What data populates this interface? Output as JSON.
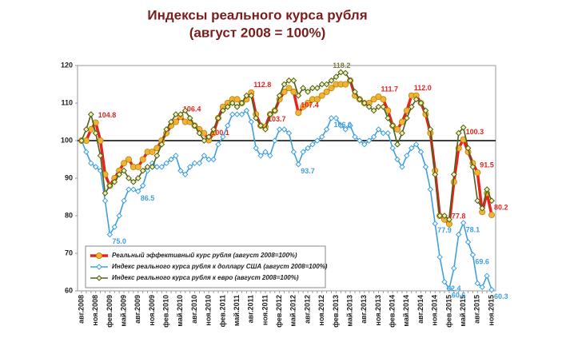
{
  "chart_data": {
    "type": "line",
    "title": "Индексы реального курса рубля",
    "subtitle": "(август 2008 = 100%)",
    "categories": [
      "авг.2008",
      null,
      null,
      "ноя.2008",
      null,
      null,
      "фев.2009",
      null,
      null,
      "май.2009",
      null,
      null,
      "авг.2009",
      null,
      null,
      "ноя.2009",
      null,
      null,
      "фев.2010",
      null,
      null,
      "май.2010",
      null,
      null,
      "авг.2010",
      null,
      null,
      "ноя.2010",
      null,
      null,
      "фев.2011",
      null,
      null,
      "май.2011",
      null,
      null,
      "авг.2011",
      null,
      null,
      "ноя.2011",
      null,
      null,
      "фев.2012",
      null,
      null,
      "май.2012",
      null,
      null,
      "авг.2012",
      null,
      null,
      "ноя.2012",
      null,
      null,
      "фев.2013",
      null,
      null,
      "май.2013",
      null,
      null,
      "авг.2013",
      null,
      null,
      "ноя.2013",
      null,
      null,
      "фев.2014",
      null,
      null,
      "май.2014",
      null,
      null,
      "авг.2014",
      null,
      null,
      "ноя.2014",
      null,
      null,
      "фев.2015",
      null,
      null,
      "май.2015",
      null,
      null,
      "авг.2015",
      null,
      null,
      "ноя.2015"
    ],
    "series": [
      {
        "name": "Реальный эффективный курс рубля (август 2008=100%)",
        "color": "#e8231e",
        "marker_color": "#f2b233",
        "values": [
          100,
          100,
          103,
          104.8,
          100,
          91,
          88,
          90,
          92,
          94,
          95,
          93,
          93,
          95,
          97,
          97,
          98,
          100,
          102,
          104,
          105,
          106.4,
          105,
          105,
          104,
          103,
          102,
          100.1,
          102,
          106,
          109,
          110,
          111,
          111,
          110,
          111,
          112.8,
          107,
          104,
          103.7,
          107,
          108,
          111,
          113,
          114,
          113,
          107.4,
          109,
          110,
          111,
          111,
          112,
          113,
          114,
          115,
          115,
          115,
          116,
          112,
          111,
          110,
          110,
          111,
          111.7,
          111,
          108,
          104,
          103,
          105,
          108,
          112,
          112,
          110,
          107,
          102,
          92,
          80,
          79,
          77.8,
          89,
          98,
          100.3,
          97,
          94,
          91.5,
          81,
          86,
          80.2
        ],
        "value_labels": [
          null,
          null,
          null,
          "104.8",
          null,
          null,
          null,
          null,
          null,
          null,
          null,
          null,
          null,
          null,
          null,
          null,
          null,
          null,
          null,
          null,
          null,
          "106.4",
          null,
          null,
          null,
          null,
          null,
          "100.1",
          null,
          null,
          null,
          null,
          null,
          null,
          null,
          null,
          "112.8",
          null,
          null,
          "103.7",
          null,
          null,
          null,
          null,
          null,
          null,
          "107.4",
          null,
          null,
          null,
          null,
          null,
          null,
          null,
          null,
          null,
          null,
          null,
          null,
          null,
          null,
          null,
          null,
          "111.7",
          null,
          null,
          null,
          null,
          null,
          null,
          "112.0",
          null,
          null,
          null,
          null,
          null,
          null,
          null,
          "77.8",
          null,
          null,
          "100.3",
          null,
          null,
          "91.5",
          null,
          null,
          "80.2"
        ]
      },
      {
        "name": "Индекс реального курса рубля к доллару США (август 2008=100%)",
        "color": "#3fa0e0",
        "marker_color": "#ffffff",
        "values": [
          100,
          97,
          94,
          93,
          92,
          84,
          75,
          77,
          80,
          84,
          87,
          87,
          86.5,
          88,
          92,
          94,
          93,
          93,
          94,
          95,
          96,
          92,
          91,
          93,
          94,
          94,
          96,
          95,
          95,
          99,
          101,
          104,
          107,
          107,
          107,
          108,
          105,
          98,
          96,
          97,
          96,
          100,
          103,
          103,
          102,
          97,
          93.7,
          97,
          98,
          99,
          100,
          101,
          103,
          106,
          106,
          104,
          103,
          104,
          101,
          100,
          99,
          100,
          101,
          103,
          102,
          102,
          98,
          95,
          93,
          96,
          98,
          99,
          97,
          93,
          87,
          77.9,
          69,
          62.4,
          60.6,
          66,
          75,
          78.1,
          73,
          69.6,
          62,
          61,
          64,
          60.3
        ],
        "value_labels": [
          null,
          null,
          null,
          null,
          null,
          null,
          "75.0",
          null,
          null,
          null,
          null,
          null,
          "86.5",
          null,
          null,
          null,
          null,
          null,
          null,
          null,
          null,
          null,
          null,
          null,
          null,
          null,
          null,
          null,
          null,
          null,
          null,
          null,
          null,
          null,
          null,
          null,
          null,
          null,
          null,
          null,
          null,
          null,
          null,
          null,
          null,
          null,
          "93.7",
          null,
          null,
          null,
          null,
          null,
          null,
          "106.0",
          null,
          null,
          null,
          null,
          null,
          null,
          null,
          null,
          null,
          null,
          null,
          null,
          null,
          null,
          null,
          null,
          null,
          null,
          null,
          null,
          null,
          "77.9",
          null,
          "62.4",
          "60.6",
          null,
          null,
          "78.1",
          null,
          "69.6",
          null,
          null,
          null,
          "60.3"
        ]
      },
      {
        "name": "Индекс реального курса рубля к евро (август 2008=100%)",
        "color": "#4f5f1c",
        "marker_color": "#f3f0b0",
        "values": [
          100,
          103,
          107,
          102,
          96,
          86,
          88,
          89,
          91,
          92,
          90,
          89,
          90,
          92,
          93,
          93,
          96,
          99,
          103,
          105,
          107,
          107,
          108,
          106,
          104,
          102,
          100,
          101,
          103,
          106,
          108,
          109,
          110,
          109,
          110,
          112,
          112,
          106,
          104,
          103,
          107,
          108,
          112,
          115,
          116,
          116,
          112,
          114,
          113,
          114,
          114,
          115,
          115,
          116,
          117,
          118.2,
          118,
          116,
          113,
          111,
          110,
          109,
          108,
          109,
          109,
          106,
          104,
          99,
          102,
          106,
          109,
          111,
          110,
          108,
          103,
          91,
          80,
          80,
          79,
          91,
          102,
          103.5,
          98,
          93,
          84,
          82,
          87,
          84
        ],
        "value_labels": [
          null,
          null,
          null,
          null,
          null,
          null,
          null,
          null,
          null,
          null,
          null,
          null,
          null,
          null,
          null,
          null,
          null,
          null,
          null,
          null,
          null,
          null,
          null,
          null,
          null,
          null,
          null,
          null,
          null,
          null,
          null,
          null,
          null,
          null,
          null,
          null,
          null,
          null,
          null,
          null,
          null,
          null,
          null,
          null,
          null,
          null,
          null,
          null,
          null,
          null,
          null,
          null,
          null,
          null,
          null,
          "118.2",
          null,
          null,
          null,
          null,
          null,
          null,
          null,
          null,
          null,
          null,
          null,
          null,
          null,
          null,
          null,
          null,
          null,
          null,
          null,
          null,
          null,
          null,
          null,
          null,
          null,
          null,
          null,
          null,
          null,
          null,
          null,
          null
        ]
      }
    ],
    "ylim": [
      60,
      120
    ],
    "yticks": [
      60,
      70,
      80,
      90,
      100,
      110,
      120
    ],
    "baseline": 100,
    "legend": "lower left"
  }
}
